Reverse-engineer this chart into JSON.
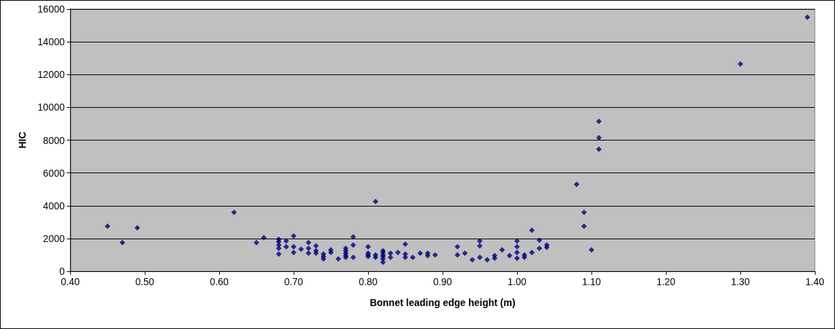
{
  "chart_data": {
    "type": "scatter",
    "xlabel": "Bonnet leading edge height (m)",
    "ylabel": "HIC",
    "x": [
      0.45,
      0.47,
      0.49,
      0.62,
      0.65,
      0.66,
      0.68,
      0.68,
      0.68,
      0.68,
      0.68,
      0.69,
      0.69,
      0.7,
      0.7,
      0.7,
      0.71,
      0.72,
      0.72,
      0.72,
      0.73,
      0.73,
      0.73,
      0.74,
      0.74,
      0.74,
      0.75,
      0.75,
      0.76,
      0.77,
      0.77,
      0.77,
      0.77,
      0.77,
      0.78,
      0.78,
      0.78,
      0.8,
      0.8,
      0.8,
      0.8,
      0.81,
      0.81,
      0.81,
      0.82,
      0.82,
      0.82,
      0.82,
      0.82,
      0.82,
      0.83,
      0.83,
      0.84,
      0.85,
      0.85,
      0.85,
      0.86,
      0.87,
      0.88,
      0.88,
      0.89,
      0.92,
      0.92,
      0.93,
      0.94,
      0.95,
      0.95,
      0.95,
      0.96,
      0.97,
      0.97,
      0.98,
      0.99,
      1.0,
      1.0,
      1.0,
      1.0,
      1.01,
      1.01,
      1.02,
      1.02,
      1.03,
      1.03,
      1.04,
      1.04,
      1.08,
      1.09,
      1.09,
      1.1,
      1.11,
      1.11,
      1.11,
      1.3,
      1.39
    ],
    "series": [
      {
        "color": "#000080",
        "values": [
          2750,
          1750,
          2650,
          3600,
          1750,
          2050,
          1950,
          1800,
          1600,
          1400,
          1050,
          1850,
          1500,
          2150,
          1500,
          1150,
          1350,
          1750,
          1400,
          1100,
          1550,
          1250,
          1100,
          1050,
          900,
          750,
          1300,
          1150,
          750,
          1400,
          1250,
          1100,
          950,
          850,
          2100,
          1600,
          850,
          1500,
          1100,
          1000,
          900,
          4250,
          1000,
          850,
          1250,
          1150,
          1000,
          900,
          750,
          550,
          1100,
          850,
          1150,
          1650,
          1050,
          850,
          850,
          1100,
          1100,
          950,
          1000,
          1500,
          1000,
          1100,
          700,
          1850,
          1550,
          850,
          700,
          950,
          800,
          1300,
          950,
          1850,
          1500,
          1150,
          800,
          1000,
          850,
          2500,
          1150,
          1900,
          1400,
          1600,
          1450,
          5300,
          3600,
          2750,
          1300,
          9150,
          8150,
          7450,
          12650,
          15500
        ]
      }
    ],
    "xlim": [
      0.4,
      1.4
    ],
    "xticks": [
      {
        "value": 0.4,
        "label": "0.40"
      },
      {
        "value": 0.5,
        "label": "0.50"
      },
      {
        "value": 0.6,
        "label": "0.60"
      },
      {
        "value": 0.7,
        "label": "0.70"
      },
      {
        "value": 0.8,
        "label": "0.80"
      },
      {
        "value": 0.9,
        "label": "0.90"
      },
      {
        "value": 1.0,
        "label": "1.00"
      },
      {
        "value": 1.1,
        "label": "1.10"
      },
      {
        "value": 1.2,
        "label": "1.20"
      },
      {
        "value": 1.3,
        "label": "1.30"
      },
      {
        "value": 1.4,
        "label": "1.40"
      }
    ],
    "ylim": [
      0,
      16000
    ],
    "yticks": [
      0,
      2000,
      4000,
      6000,
      8000,
      10000,
      12000,
      14000,
      16000
    ],
    "grid": "y",
    "marker": "diamond"
  }
}
